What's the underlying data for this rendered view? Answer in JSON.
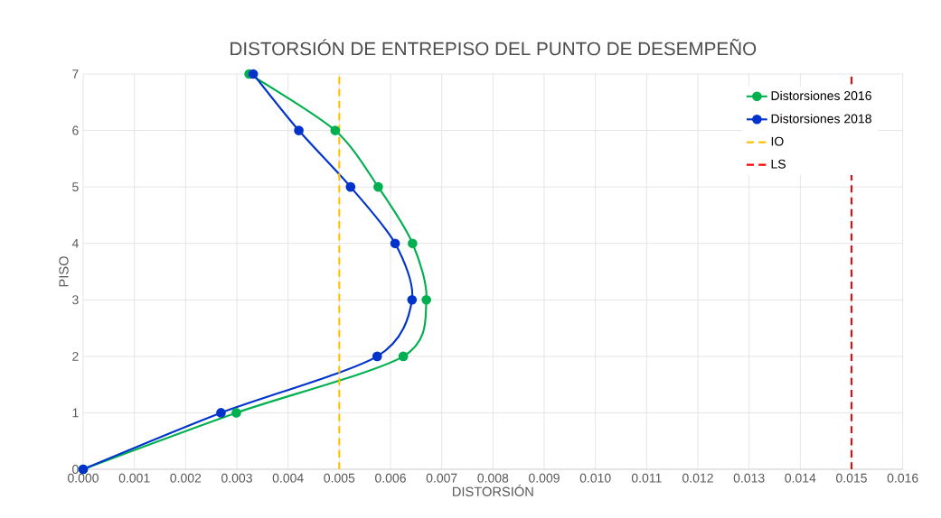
{
  "chart_data": {
    "type": "line",
    "title": "DISTORSIÓN DE ENTREPISO DEL PUNTO DE DESEMPEÑO",
    "xlabel": "DISTORSIÓN",
    "ylabel": "PISO",
    "series": [
      {
        "name": "Distorsiones 2016",
        "color": "#00b050",
        "marker": "circle",
        "line_style": "solid",
        "x": [
          0,
          0.00299,
          0.00625,
          0.0067,
          0.00643,
          0.00576,
          0.00492,
          0.00324
        ],
        "values": [
          0,
          1,
          2,
          3,
          4,
          5,
          6,
          7
        ]
      },
      {
        "name": "Distorsiones 2018",
        "color": "#0033cc",
        "marker": "circle",
        "line_style": "solid",
        "x": [
          0,
          0.00269,
          0.00574,
          0.00642,
          0.00609,
          0.00522,
          0.00421,
          0.00332
        ],
        "values": [
          0,
          1,
          2,
          3,
          4,
          5,
          6,
          7
        ]
      },
      {
        "name": "IO",
        "color": "#ffc000",
        "marker": "none",
        "line_style": "dashed",
        "x": [
          0.005,
          0.005
        ],
        "values": [
          0,
          7
        ]
      },
      {
        "name": "LS",
        "color": "#ff0000",
        "marker": "none",
        "line_style": "dashed",
        "x": [
          0.015,
          0.015
        ],
        "values": [
          0,
          7
        ]
      }
    ],
    "xlim": [
      0,
      0.016
    ],
    "xticks": [
      {
        "value": 0,
        "label": "0.000"
      },
      {
        "value": 0.001,
        "label": "0.001"
      },
      {
        "value": 0.002,
        "label": "0.002"
      },
      {
        "value": 0.003,
        "label": "0.003"
      },
      {
        "value": 0.004,
        "label": "0.004"
      },
      {
        "value": 0.005,
        "label": "0.005"
      },
      {
        "value": 0.006,
        "label": "0.006"
      },
      {
        "value": 0.007,
        "label": "0.007"
      },
      {
        "value": 0.008,
        "label": "0.008"
      },
      {
        "value": 0.009,
        "label": "0.009"
      },
      {
        "value": 0.01,
        "label": "0.010"
      },
      {
        "value": 0.011,
        "label": "0.011"
      },
      {
        "value": 0.012,
        "label": "0.012"
      },
      {
        "value": 0.013,
        "label": "0.013"
      },
      {
        "value": 0.014,
        "label": "0.014"
      },
      {
        "value": 0.015,
        "label": "0.015"
      },
      {
        "value": 0.016,
        "label": "0.016"
      }
    ],
    "ylim": [
      0,
      7
    ],
    "yticks": [
      0,
      1,
      2,
      3,
      4,
      5,
      6,
      7
    ],
    "grid": true,
    "legend": "top right"
  }
}
